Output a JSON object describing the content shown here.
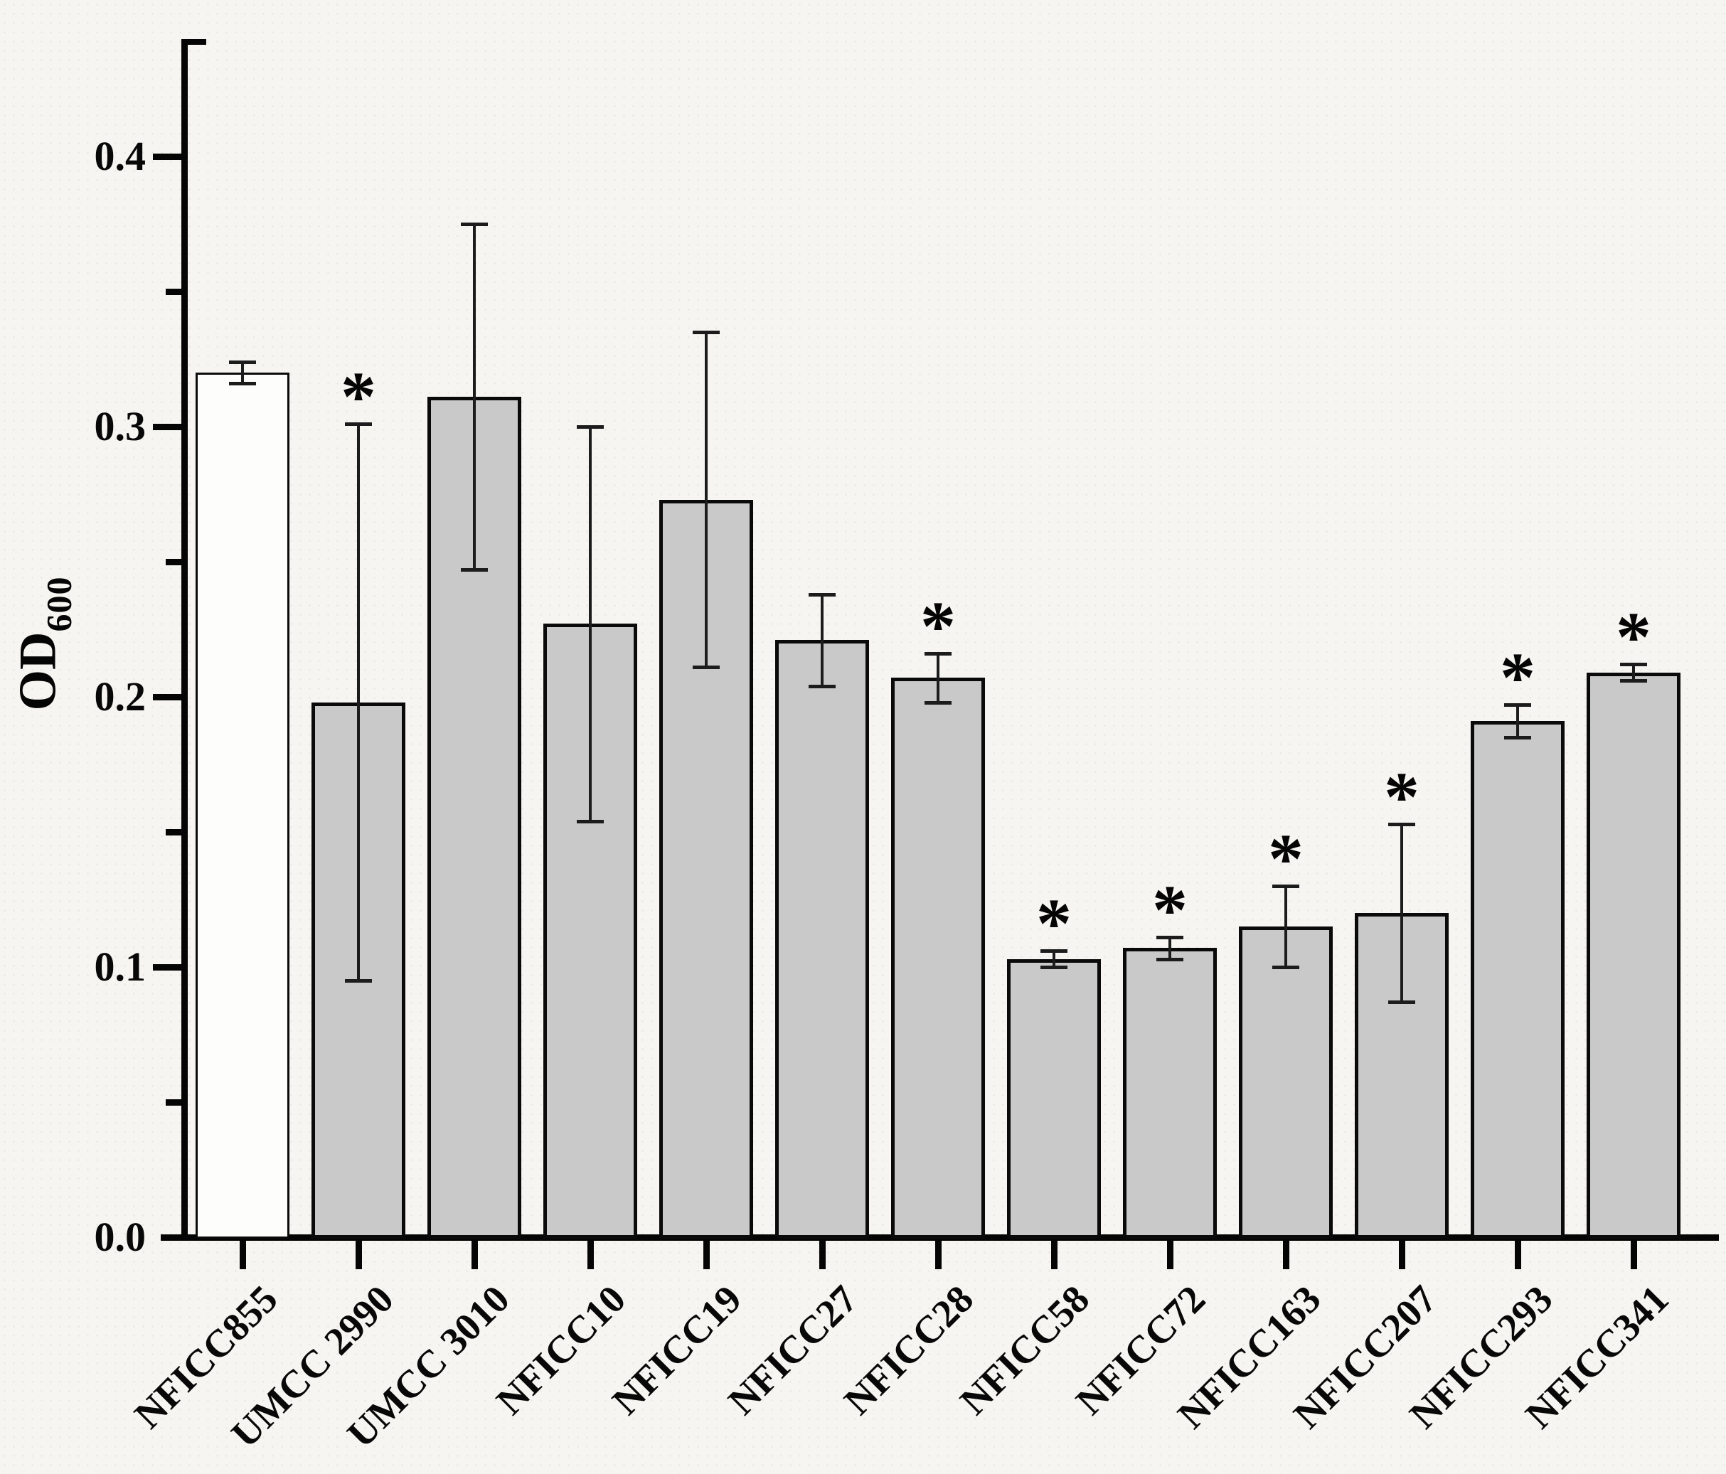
{
  "chart_data": {
    "type": "bar",
    "title": "",
    "xlabel": "",
    "ylabel": "OD",
    "ylabel_subscript": "600",
    "ylim": [
      0.0,
      0.443
    ],
    "ytick_values": [
      0.0,
      0.1,
      0.2,
      0.3,
      0.4
    ],
    "ytick_labels": [
      "0.0",
      "0.1",
      "0.2",
      "0.3",
      "0.4"
    ],
    "ytick_minor_values": [
      0.05,
      0.15,
      0.25,
      0.35
    ],
    "grid": false,
    "legend": "none",
    "significance_marker": "*",
    "colors": {
      "control_bar_fill": "#fdfdfc",
      "bar_fill": "#c9c9c9",
      "bar_border": "#0a0a0a",
      "axis": "#050505",
      "background": "#f6f5f1"
    },
    "categories": [
      "NFICC855",
      "UMCC 2990",
      "UMCC 3010",
      "NFICC10",
      "NFICC19",
      "NFICC27",
      "NFICC28",
      "NFICC58",
      "NFICC72",
      "NFICC163",
      "NFICC207",
      "NFICC293",
      "NFICC341"
    ],
    "bars": [
      {
        "label": "NFICC855",
        "value": 0.32,
        "error": 0.004,
        "significant": false,
        "fill": "control"
      },
      {
        "label": "UMCC 2990",
        "value": 0.198,
        "error": 0.103,
        "significant": true,
        "fill": "gray"
      },
      {
        "label": "UMCC 3010",
        "value": 0.311,
        "error": 0.064,
        "significant": false,
        "fill": "gray"
      },
      {
        "label": "NFICC10",
        "value": 0.227,
        "error": 0.073,
        "significant": false,
        "fill": "gray"
      },
      {
        "label": "NFICC19",
        "value": 0.273,
        "error": 0.062,
        "significant": false,
        "fill": "gray"
      },
      {
        "label": "NFICC27",
        "value": 0.221,
        "error": 0.017,
        "significant": false,
        "fill": "gray"
      },
      {
        "label": "NFICC28",
        "value": 0.207,
        "error": 0.009,
        "significant": true,
        "fill": "gray"
      },
      {
        "label": "NFICC58",
        "value": 0.103,
        "error": 0.003,
        "significant": true,
        "fill": "gray"
      },
      {
        "label": "NFICC72",
        "value": 0.107,
        "error": 0.004,
        "significant": true,
        "fill": "gray"
      },
      {
        "label": "NFICC163",
        "value": 0.115,
        "error": 0.015,
        "significant": true,
        "fill": "gray"
      },
      {
        "label": "NFICC207",
        "value": 0.12,
        "error": 0.033,
        "significant": true,
        "fill": "gray"
      },
      {
        "label": "NFICC293",
        "value": 0.191,
        "error": 0.006,
        "significant": true,
        "fill": "gray"
      },
      {
        "label": "NFICC341",
        "value": 0.209,
        "error": 0.003,
        "significant": true,
        "fill": "gray"
      }
    ]
  }
}
